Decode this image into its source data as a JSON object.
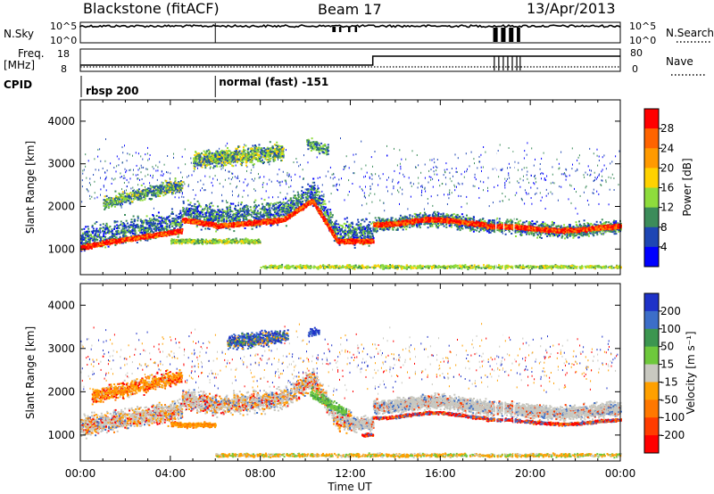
{
  "header": {
    "station": "Blackstone (fitACF)",
    "beam": "Beam 17",
    "date": "13/Apr/2013"
  },
  "top_panels": {
    "nsky_label": "N.Sky",
    "nsearch_label": "N.Search",
    "nsky_ticks": [
      "10^5",
      "10^0"
    ],
    "nsearch_ticks": [
      "10^5",
      "10^0"
    ],
    "freq_label_line1": "Freq.",
    "freq_label_line2": "[MHz]",
    "freq_ticks": [
      "18",
      "8"
    ],
    "nave_label": "Nave",
    "nave_ticks": [
      "80",
      "0"
    ],
    "cpid_label": "CPID",
    "cpid_segments": [
      {
        "text": "rbsp 200",
        "start_hour": 0
      },
      {
        "text": "normal (fast) -151",
        "start_hour": 6
      }
    ]
  },
  "chart_data": [
    {
      "type": "heatmap",
      "xlabel": "",
      "ylabel": "Slant Range [km]",
      "xlim": [
        0,
        24
      ],
      "ylim": [
        400,
        4500
      ],
      "yticks": [
        1000,
        2000,
        3000,
        4000
      ],
      "colorbar": {
        "label": "Power [dB]",
        "ticks": [
          "28",
          "24",
          "20",
          "16",
          "12",
          "8",
          "4"
        ],
        "colors": [
          "#ff0000",
          "#ff6400",
          "#ff9a00",
          "#ffd200",
          "#8edc3c",
          "#3c8c5a",
          "#1e46b4",
          "#0000ff"
        ]
      }
    },
    {
      "type": "heatmap",
      "xlabel": "Time UT",
      "ylabel": "Slant Range [km]",
      "xlim": [
        0,
        24
      ],
      "ylim": [
        400,
        4500
      ],
      "yticks": [
        1000,
        2000,
        3000,
        4000
      ],
      "xticks": [
        "00:00",
        "04:00",
        "08:00",
        "12:00",
        "16:00",
        "20:00",
        "00:00"
      ],
      "colorbar": {
        "label": "Velocity [m s⁻¹]",
        "ticks": [
          "200",
          "100",
          "50",
          "15",
          "-15",
          "-50",
          "-100",
          "-200"
        ],
        "colors": [
          "#1e32c8",
          "#3c6ec8",
          "#3c9650",
          "#6ec83c",
          "#c8c8c0",
          "#ffa000",
          "#ff7800",
          "#ff3c00",
          "#ff0000"
        ]
      }
    }
  ]
}
